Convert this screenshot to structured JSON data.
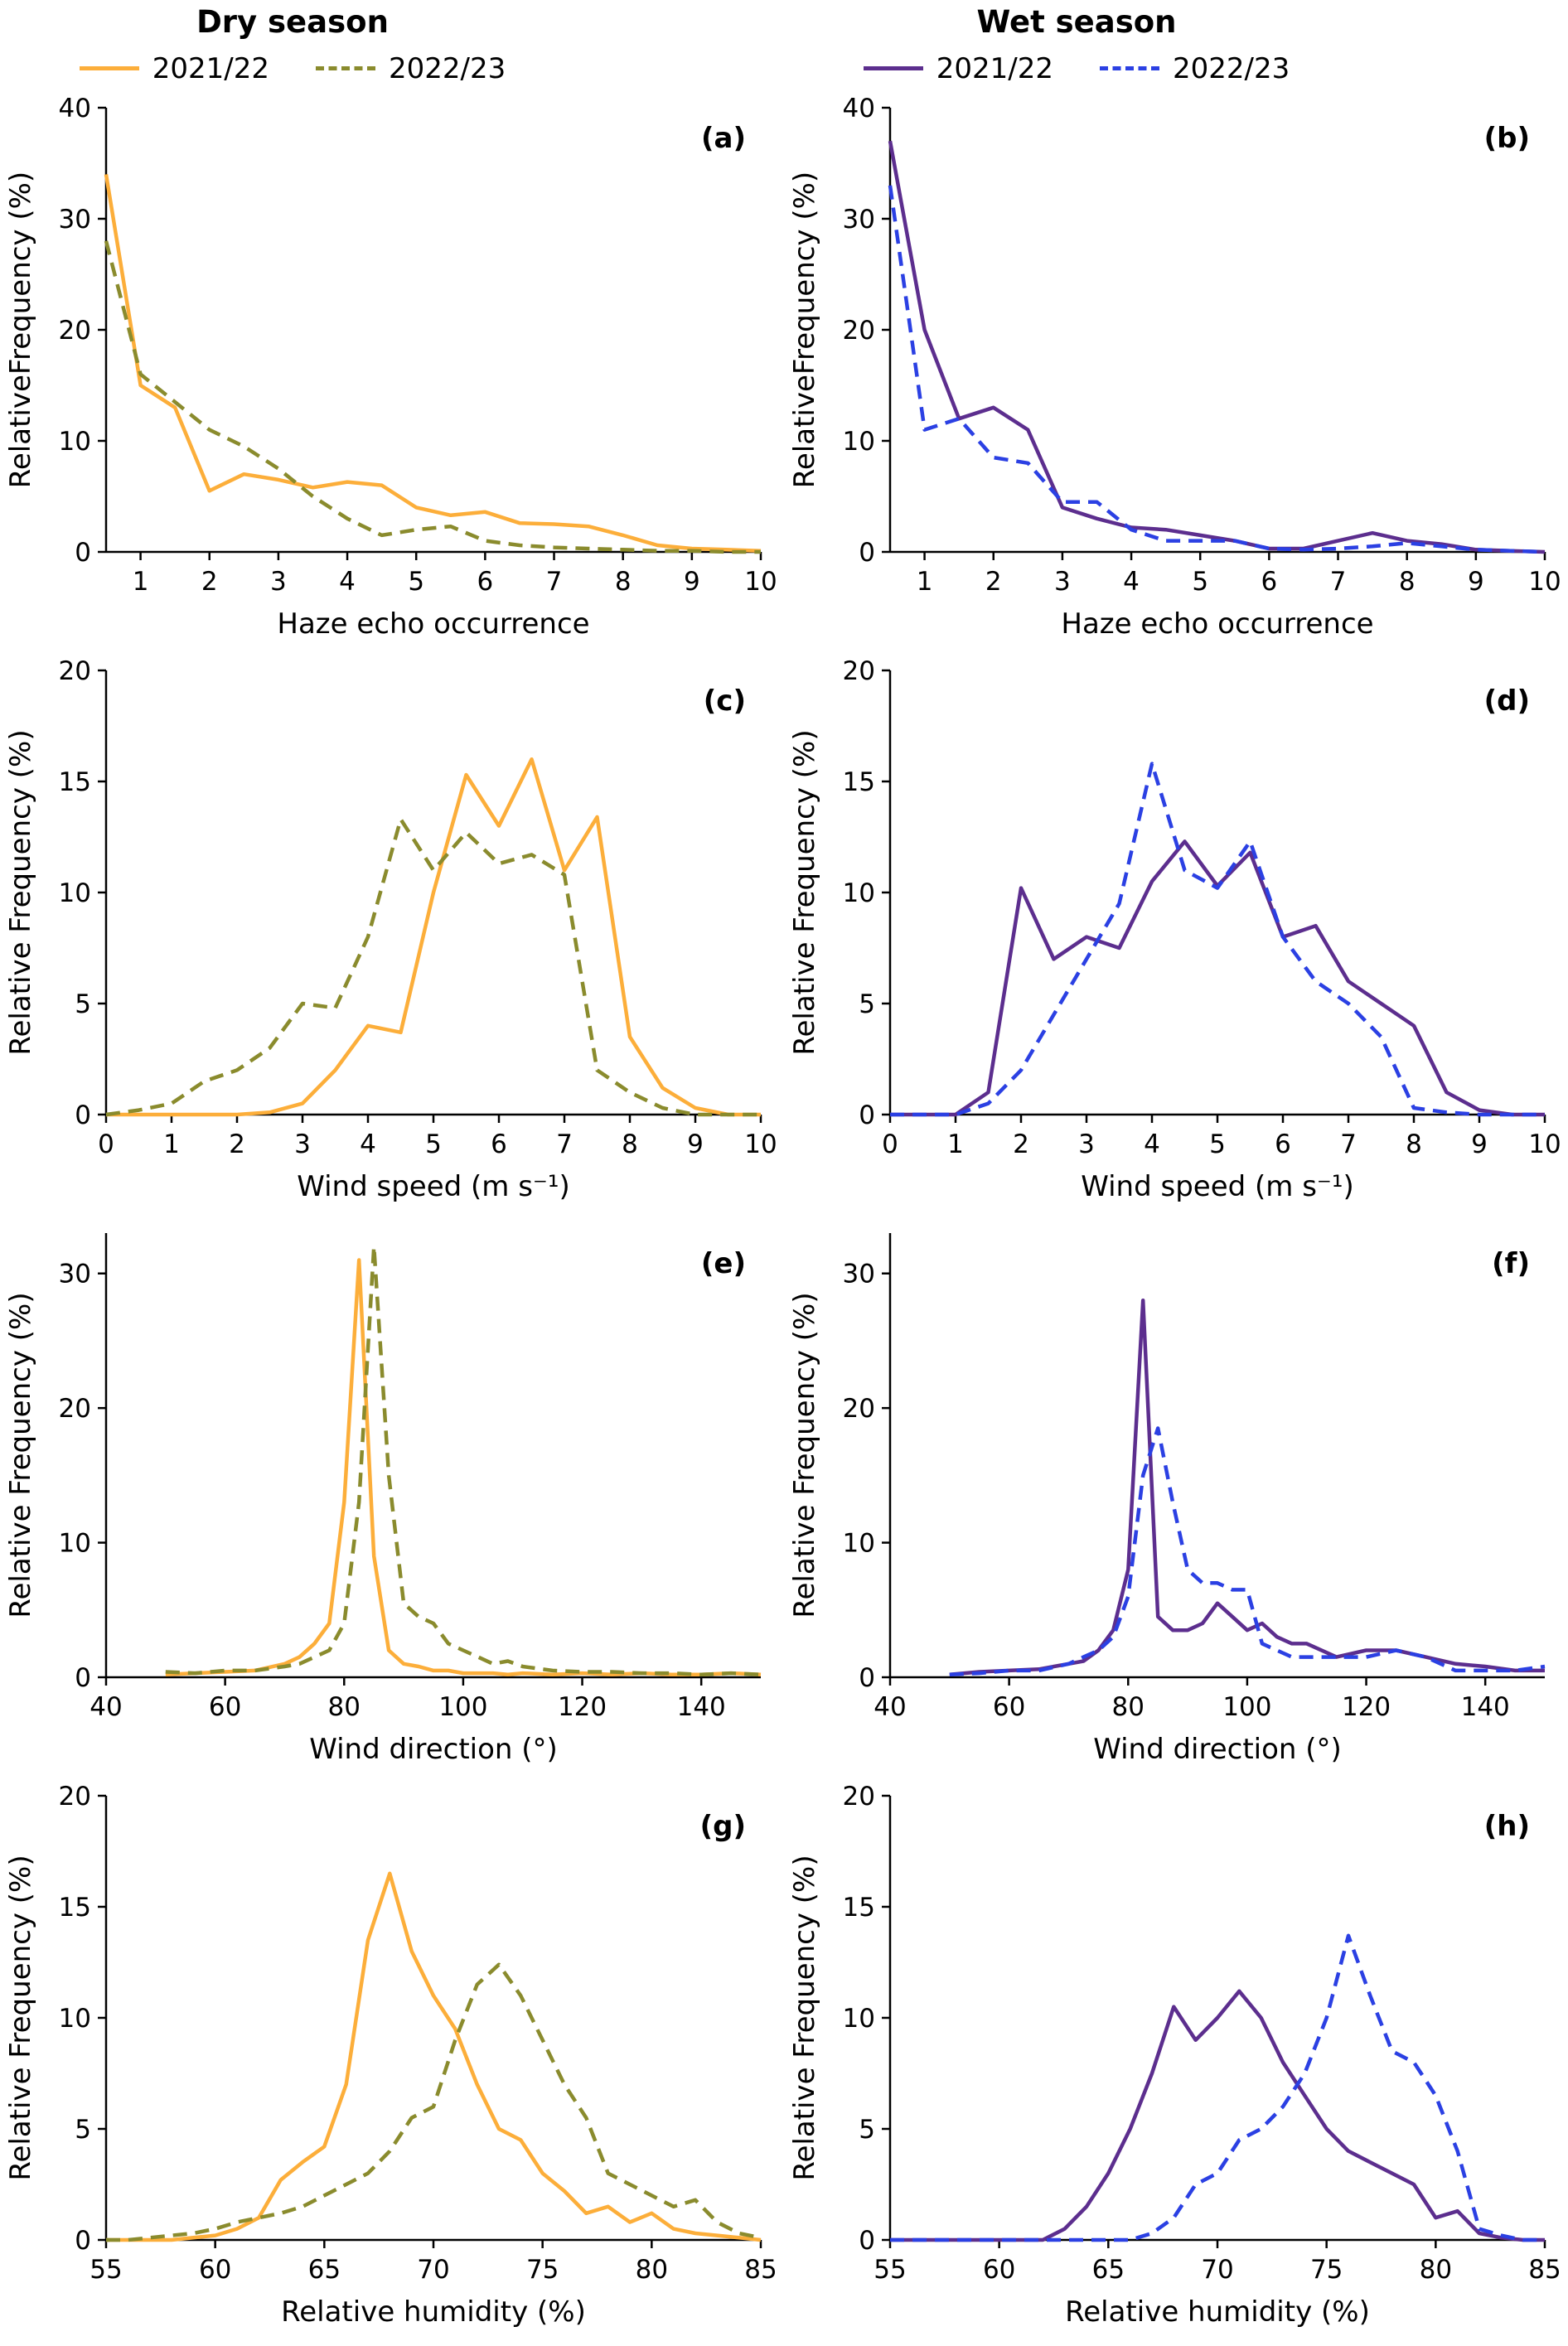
{
  "columns": [
    {
      "title": "Dry season",
      "legend": [
        {
          "label": "2021/22",
          "style": "solid",
          "color": "#FCAE3A"
        },
        {
          "label": "2022/23",
          "style": "dashed",
          "color": "#8A8B2D"
        }
      ]
    },
    {
      "title": "Wet season",
      "legend": [
        {
          "label": "2021/22",
          "style": "solid",
          "color": "#5C2E8E"
        },
        {
          "label": "2022/23",
          "style": "dashed",
          "color": "#2B40E3"
        }
      ]
    }
  ],
  "chart_data": [
    {
      "type": "line",
      "panel": "(a)",
      "season": "Dry season",
      "xlabel": "Haze echo occurrence",
      "ylabel": "RelativeFrequency (%)",
      "xlim": [
        0.5,
        10
      ],
      "ylim": [
        0,
        40
      ],
      "xticks": [
        1,
        2,
        3,
        4,
        5,
        6,
        7,
        8,
        9,
        10
      ],
      "yticks": [
        0,
        10,
        20,
        30,
        40
      ],
      "x": [
        0.5,
        1,
        1.5,
        2,
        2.5,
        3,
        3.5,
        4,
        4.5,
        5,
        5.5,
        6,
        6.5,
        7,
        7.5,
        8,
        8.5,
        9,
        9.5,
        10
      ],
      "series": [
        {
          "name": "2021/22",
          "color": "#FCAE3A",
          "dash": false,
          "y": [
            34,
            15,
            13,
            5.5,
            7,
            6.5,
            5.8,
            6.3,
            6,
            4,
            3.3,
            3.6,
            2.6,
            2.5,
            2.3,
            1.5,
            0.6,
            0.3,
            0.2,
            0.1
          ]
        },
        {
          "name": "2022/23",
          "color": "#8A8B2D",
          "dash": true,
          "y": [
            28,
            16,
            13.5,
            11,
            9.5,
            7.5,
            5,
            3,
            1.5,
            2,
            2.3,
            1,
            0.6,
            0.4,
            0.3,
            0.2,
            0.1,
            0.1,
            0,
            0
          ]
        }
      ]
    },
    {
      "type": "line",
      "panel": "(b)",
      "season": "Wet season",
      "xlabel": "Haze echo occurrence",
      "ylabel": "RelativeFrequency (%)",
      "xlim": [
        0.5,
        10
      ],
      "ylim": [
        0,
        40
      ],
      "xticks": [
        1,
        2,
        3,
        4,
        5,
        6,
        7,
        8,
        9,
        10
      ],
      "yticks": [
        0,
        10,
        20,
        30,
        40
      ],
      "x": [
        0.5,
        1,
        1.5,
        2,
        2.5,
        3,
        3.5,
        4,
        4.5,
        5,
        5.5,
        6,
        6.5,
        7,
        7.5,
        8,
        8.5,
        9,
        9.5,
        10
      ],
      "series": [
        {
          "name": "2021/22",
          "color": "#5C2E8E",
          "dash": false,
          "y": [
            37,
            20,
            12,
            13,
            11,
            4,
            3,
            2.2,
            2,
            1.5,
            1,
            0.3,
            0.3,
            1,
            1.7,
            1,
            0.7,
            0.2,
            0.1,
            0
          ]
        },
        {
          "name": "2022/23",
          "color": "#2B40E3",
          "dash": true,
          "y": [
            33,
            11,
            12,
            8.5,
            8,
            4.5,
            4.5,
            2,
            1,
            1,
            1,
            0.3,
            0.2,
            0.3,
            0.5,
            0.8,
            0.5,
            0.2,
            0.1,
            0
          ]
        }
      ]
    },
    {
      "type": "line",
      "panel": "(c)",
      "season": "Dry season",
      "xlabel": "Wind speed (m s⁻¹)",
      "ylabel": "Relative Frequency (%)",
      "xlim": [
        0,
        10
      ],
      "ylim": [
        0,
        20
      ],
      "xticks": [
        0,
        1,
        2,
        3,
        4,
        5,
        6,
        7,
        8,
        9,
        10
      ],
      "yticks": [
        0,
        5,
        10,
        15,
        20
      ],
      "x": [
        0,
        0.5,
        1,
        1.5,
        2,
        2.5,
        3,
        3.5,
        4,
        4.5,
        5,
        5.5,
        6,
        6.5,
        7,
        7.5,
        8,
        8.5,
        9,
        9.5,
        10
      ],
      "series": [
        {
          "name": "2021/22",
          "color": "#FCAE3A",
          "dash": false,
          "y": [
            0,
            0,
            0,
            0,
            0,
            0.1,
            0.5,
            2,
            4,
            3.7,
            10,
            15.3,
            13,
            16,
            11,
            13.4,
            3.5,
            1.2,
            0.3,
            0,
            0
          ]
        },
        {
          "name": "2022/23",
          "color": "#8A8B2D",
          "dash": true,
          "y": [
            0,
            0.2,
            0.5,
            1.5,
            2,
            3,
            5,
            4.8,
            8,
            13.3,
            11,
            12.7,
            11.3,
            11.7,
            10.8,
            2,
            1,
            0.3,
            0,
            0,
            0
          ]
        }
      ]
    },
    {
      "type": "line",
      "panel": "(d)",
      "season": "Wet season",
      "xlabel": "Wind speed (m s⁻¹)",
      "ylabel": "Relative Frequency (%)",
      "xlim": [
        0,
        10
      ],
      "ylim": [
        0,
        20
      ],
      "xticks": [
        0,
        1,
        2,
        3,
        4,
        5,
        6,
        7,
        8,
        9,
        10
      ],
      "yticks": [
        0,
        5,
        10,
        15,
        20
      ],
      "x": [
        0,
        0.5,
        1,
        1.5,
        2,
        2.5,
        3,
        3.5,
        4,
        4.5,
        5,
        5.5,
        6,
        6.5,
        7,
        7.5,
        8,
        8.5,
        9,
        9.5,
        10
      ],
      "series": [
        {
          "name": "2021/22",
          "color": "#5C2E8E",
          "dash": false,
          "y": [
            0,
            0,
            0,
            1,
            10.2,
            7,
            8,
            7.5,
            10.5,
            12.3,
            10.3,
            11.8,
            8,
            8.5,
            6,
            5,
            4,
            1,
            0.2,
            0,
            0
          ]
        },
        {
          "name": "2022/23",
          "color": "#2B40E3",
          "dash": true,
          "y": [
            0,
            0,
            0,
            0.5,
            2,
            4.5,
            7,
            9.5,
            15.8,
            11,
            10.2,
            12.3,
            8,
            6,
            5,
            3.5,
            0.3,
            0.1,
            0,
            0,
            0
          ]
        }
      ]
    },
    {
      "type": "line",
      "panel": "(e)",
      "season": "Dry season",
      "xlabel": "Wind direction (°)",
      "ylabel": "Relative Frequency (%)",
      "xlim": [
        40,
        150
      ],
      "ylim": [
        0,
        33
      ],
      "xticks": [
        40,
        60,
        80,
        100,
        120,
        140
      ],
      "yticks": [
        0,
        10,
        20,
        30
      ],
      "x": [
        50,
        55,
        60,
        65,
        70,
        72.5,
        75,
        77.5,
        80,
        82.5,
        85,
        87.5,
        90,
        92.5,
        95,
        97.5,
        100,
        102.5,
        105,
        107.5,
        110,
        115,
        120,
        125,
        130,
        135,
        140,
        145,
        150
      ],
      "series": [
        {
          "name": "2021/22",
          "color": "#FCAE3A",
          "dash": false,
          "y": [
            0.2,
            0.3,
            0.4,
            0.5,
            1,
            1.5,
            2.5,
            4,
            13,
            31,
            9,
            2,
            1,
            0.8,
            0.5,
            0.5,
            0.3,
            0.3,
            0.3,
            0.2,
            0.3,
            0.2,
            0.3,
            0.2,
            0.3,
            0.2,
            0.2,
            0.3,
            0.2
          ]
        },
        {
          "name": "2022/23",
          "color": "#8A8B2D",
          "dash": true,
          "y": [
            0.4,
            0.3,
            0.5,
            0.5,
            0.8,
            1,
            1.5,
            2,
            4,
            13,
            32,
            15,
            5.5,
            4.5,
            4,
            2.5,
            2,
            1.5,
            1,
            1.2,
            0.8,
            0.5,
            0.4,
            0.4,
            0.3,
            0.3,
            0.2,
            0.3,
            0.2
          ]
        }
      ]
    },
    {
      "type": "line",
      "panel": "(f)",
      "season": "Wet season",
      "xlabel": "Wind direction (°)",
      "ylabel": "Relative Frequency (%)",
      "xlim": [
        40,
        150
      ],
      "ylim": [
        0,
        33
      ],
      "xticks": [
        40,
        60,
        80,
        100,
        120,
        140
      ],
      "yticks": [
        0,
        10,
        20,
        30
      ],
      "x": [
        50,
        55,
        60,
        65,
        70,
        72.5,
        75,
        77.5,
        80,
        82.5,
        85,
        87.5,
        90,
        92.5,
        95,
        97.5,
        100,
        102.5,
        105,
        107.5,
        110,
        115,
        120,
        125,
        130,
        135,
        140,
        145,
        150
      ],
      "series": [
        {
          "name": "2021/22",
          "color": "#5C2E8E",
          "dash": false,
          "y": [
            0.2,
            0.4,
            0.5,
            0.6,
            1,
            1.2,
            2,
            3.5,
            8,
            28,
            4.5,
            3.5,
            3.5,
            4,
            5.5,
            4.5,
            3.5,
            4,
            3,
            2.5,
            2.5,
            1.5,
            2,
            2,
            1.5,
            1,
            0.8,
            0.5,
            0.5
          ]
        },
        {
          "name": "2022/23",
          "color": "#2B40E3",
          "dash": true,
          "y": [
            0.2,
            0.3,
            0.5,
            0.5,
            1,
            1.5,
            2,
            3,
            6,
            15,
            18.5,
            13,
            8,
            7,
            7,
            6.5,
            6.5,
            2.5,
            2,
            1.5,
            1.5,
            1.5,
            1.5,
            2,
            1.5,
            0.5,
            0.5,
            0.5,
            0.8
          ]
        }
      ]
    },
    {
      "type": "line",
      "panel": "(g)",
      "season": "Dry season",
      "xlabel": "Relative humidity (%)",
      "ylabel": "Relative Frequency (%)",
      "xlim": [
        55,
        85
      ],
      "ylim": [
        0,
        20
      ],
      "xticks": [
        55,
        60,
        65,
        70,
        75,
        80,
        85
      ],
      "yticks": [
        0,
        5,
        10,
        15,
        20
      ],
      "x": [
        55,
        56,
        57,
        58,
        59,
        60,
        61,
        62,
        63,
        64,
        65,
        66,
        67,
        68,
        69,
        70,
        71,
        72,
        73,
        74,
        75,
        76,
        77,
        78,
        79,
        80,
        81,
        82,
        83,
        84,
        85
      ],
      "series": [
        {
          "name": "2021/22",
          "color": "#FCAE3A",
          "dash": false,
          "y": [
            0,
            0,
            0,
            0,
            0.1,
            0.2,
            0.5,
            1,
            2.7,
            3.5,
            4.2,
            7,
            13.5,
            16.5,
            13,
            11,
            9.5,
            7,
            5,
            4.5,
            3,
            2.2,
            1.2,
            1.5,
            0.8,
            1.2,
            0.5,
            0.3,
            0.2,
            0.1,
            0
          ]
        },
        {
          "name": "2022/23",
          "color": "#8A8B2D",
          "dash": true,
          "y": [
            0,
            0,
            0.1,
            0.2,
            0.3,
            0.5,
            0.8,
            1,
            1.2,
            1.5,
            2,
            2.5,
            3,
            4,
            5.5,
            6,
            9,
            11.5,
            12.4,
            11,
            9,
            7,
            5.5,
            3,
            2.5,
            2,
            1.5,
            1.8,
            0.8,
            0.3,
            0.1
          ]
        }
      ]
    },
    {
      "type": "line",
      "panel": "(h)",
      "season": "Wet season",
      "xlabel": "Relative humidity (%)",
      "ylabel": "Relative Frequency (%)",
      "xlim": [
        55,
        85
      ],
      "ylim": [
        0,
        20
      ],
      "xticks": [
        55,
        60,
        65,
        70,
        75,
        80,
        85
      ],
      "yticks": [
        0,
        5,
        10,
        15,
        20
      ],
      "x": [
        55,
        56,
        57,
        58,
        59,
        60,
        61,
        62,
        63,
        64,
        65,
        66,
        67,
        68,
        69,
        70,
        71,
        72,
        73,
        74,
        75,
        76,
        77,
        78,
        79,
        80,
        81,
        82,
        83,
        84,
        85
      ],
      "series": [
        {
          "name": "2021/22",
          "color": "#5C2E8E",
          "dash": false,
          "y": [
            0,
            0,
            0,
            0,
            0,
            0,
            0,
            0,
            0.5,
            1.5,
            3,
            5,
            7.5,
            10.5,
            9,
            10,
            11.2,
            10,
            8,
            6.5,
            5,
            4,
            3.5,
            3,
            2.5,
            1,
            1.3,
            0.3,
            0.1,
            0,
            0
          ]
        },
        {
          "name": "2022/23",
          "color": "#2B40E3",
          "dash": true,
          "y": [
            0,
            0,
            0,
            0,
            0,
            0,
            0,
            0,
            0,
            0,
            0,
            0,
            0.3,
            1,
            2.5,
            3,
            4.5,
            5,
            6,
            7.5,
            10,
            13.7,
            11,
            8.5,
            8,
            6.5,
            4,
            0.5,
            0.2,
            0,
            0
          ]
        }
      ]
    }
  ]
}
